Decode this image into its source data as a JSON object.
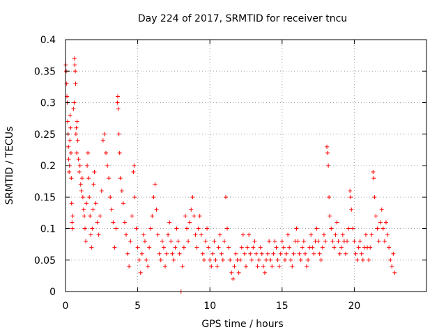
{
  "chart_data": {
    "type": "scatter",
    "title": "Day 224 of 2017, SRMTID for receiver tncu",
    "xlabel": "GPS time / hours",
    "ylabel": "SRMTID / TECUs",
    "xlim": [
      0,
      25
    ],
    "ylim": [
      0,
      0.4
    ],
    "grid": true,
    "marker": "+",
    "color": "#ff0000",
    "xticks": [
      0,
      5,
      10,
      15,
      20
    ],
    "xtick_labels": [
      "0",
      "5",
      "10",
      "15",
      "20"
    ],
    "yticks": [
      0,
      0.05,
      0.1,
      0.15,
      0.2,
      0.25,
      0.3,
      0.35,
      0.4
    ],
    "ytick_labels": [
      "0",
      "0.05",
      "0.1",
      "0.15",
      "0.2",
      "0.25",
      "0.3",
      "0.35",
      "0.4"
    ],
    "series": [
      {
        "name": "SRMTID",
        "points": [
          [
            0.02,
            0.36
          ],
          [
            0.05,
            0.35
          ],
          [
            0.08,
            0.33
          ],
          [
            0.1,
            0.31
          ],
          [
            0.12,
            0.3
          ],
          [
            0.15,
            0.27
          ],
          [
            0.18,
            0.25
          ],
          [
            0.2,
            0.23
          ],
          [
            0.22,
            0.21
          ],
          [
            0.25,
            0.19
          ],
          [
            0.28,
            0.2
          ],
          [
            0.3,
            0.24
          ],
          [
            0.32,
            0.28
          ],
          [
            0.35,
            0.26
          ],
          [
            0.38,
            0.22
          ],
          [
            0.4,
            0.18
          ],
          [
            0.42,
            0.14
          ],
          [
            0.45,
            0.11
          ],
          [
            0.48,
            0.1
          ],
          [
            0.5,
            0.12
          ],
          [
            0.55,
            0.29
          ],
          [
            0.6,
            0.3
          ],
          [
            0.62,
            0.37
          ],
          [
            0.65,
            0.36
          ],
          [
            0.68,
            0.35
          ],
          [
            0.7,
            0.33
          ],
          [
            0.72,
            0.25
          ],
          [
            0.75,
            0.26
          ],
          [
            0.78,
            0.22
          ],
          [
            0.8,
            0.27
          ],
          [
            0.85,
            0.24
          ],
          [
            0.9,
            0.21
          ],
          [
            0.95,
            0.19
          ],
          [
            1.0,
            0.2
          ],
          [
            1.05,
            0.17
          ],
          [
            1.1,
            0.16
          ],
          [
            1.15,
            0.18
          ],
          [
            1.2,
            0.15
          ],
          [
            1.25,
            0.13
          ],
          [
            1.3,
            0.12
          ],
          [
            1.35,
            0.1
          ],
          [
            1.4,
            0.08
          ],
          [
            1.45,
            0.14
          ],
          [
            1.5,
            0.2
          ],
          [
            1.55,
            0.22
          ],
          [
            1.6,
            0.18
          ],
          [
            1.65,
            0.15
          ],
          [
            1.7,
            0.12
          ],
          [
            1.75,
            0.09
          ],
          [
            1.8,
            0.07
          ],
          [
            1.85,
            0.1
          ],
          [
            1.9,
            0.13
          ],
          [
            1.95,
            0.17
          ],
          [
            2.0,
            0.19
          ],
          [
            2.1,
            0.14
          ],
          [
            2.2,
            0.11
          ],
          [
            2.3,
            0.09
          ],
          [
            2.4,
            0.12
          ],
          [
            2.5,
            0.16
          ],
          [
            2.6,
            0.24
          ],
          [
            2.7,
            0.25
          ],
          [
            2.8,
            0.22
          ],
          [
            2.9,
            0.2
          ],
          [
            3.0,
            0.18
          ],
          [
            3.1,
            0.15
          ],
          [
            3.2,
            0.13
          ],
          [
            3.3,
            0.11
          ],
          [
            3.4,
            0.07
          ],
          [
            3.5,
            0.1
          ],
          [
            3.6,
            0.3
          ],
          [
            3.62,
            0.31
          ],
          [
            3.65,
            0.29
          ],
          [
            3.7,
            0.25
          ],
          [
            3.75,
            0.22
          ],
          [
            3.8,
            0.18
          ],
          [
            3.9,
            0.16
          ],
          [
            4.0,
            0.14
          ],
          [
            4.1,
            0.11
          ],
          [
            4.2,
            0.09
          ],
          [
            4.3,
            0.06
          ],
          [
            4.4,
            0.04
          ],
          [
            4.5,
            0.08
          ],
          [
            4.6,
            0.12
          ],
          [
            4.7,
            0.19
          ],
          [
            4.75,
            0.2
          ],
          [
            4.8,
            0.15
          ],
          [
            4.9,
            0.1
          ],
          [
            5.0,
            0.07
          ],
          [
            5.1,
            0.05
          ],
          [
            5.2,
            0.03
          ],
          [
            5.3,
            0.06
          ],
          [
            5.4,
            0.09
          ],
          [
            5.5,
            0.08
          ],
          [
            5.6,
            0.05
          ],
          [
            5.7,
            0.04
          ],
          [
            5.8,
            0.07
          ],
          [
            5.9,
            0.1
          ],
          [
            6.0,
            0.12
          ],
          [
            6.1,
            0.15
          ],
          [
            6.2,
            0.17
          ],
          [
            6.3,
            0.13
          ],
          [
            6.4,
            0.09
          ],
          [
            6.5,
            0.06
          ],
          [
            6.6,
            0.05
          ],
          [
            6.7,
            0.08
          ],
          [
            6.8,
            0.07
          ],
          [
            6.9,
            0.04
          ],
          [
            7.0,
            0.06
          ],
          [
            7.1,
            0.09
          ],
          [
            7.2,
            0.11
          ],
          [
            7.3,
            0.08
          ],
          [
            7.4,
            0.06
          ],
          [
            7.5,
            0.05
          ],
          [
            7.6,
            0.07
          ],
          [
            7.7,
            0.1
          ],
          [
            7.8,
            0.08
          ],
          [
            7.9,
            0.06
          ],
          [
            8.0,
            0.0
          ],
          [
            8.1,
            0.04
          ],
          [
            8.2,
            0.07
          ],
          [
            8.3,
            0.12
          ],
          [
            8.4,
            0.1
          ],
          [
            8.5,
            0.08
          ],
          [
            8.6,
            0.11
          ],
          [
            8.7,
            0.13
          ],
          [
            8.8,
            0.15
          ],
          [
            8.9,
            0.12
          ],
          [
            9.0,
            0.09
          ],
          [
            9.1,
            0.07
          ],
          [
            9.2,
            0.1
          ],
          [
            9.3,
            0.12
          ],
          [
            9.4,
            0.09
          ],
          [
            9.5,
            0.06
          ],
          [
            9.6,
            0.05
          ],
          [
            9.7,
            0.08
          ],
          [
            9.8,
            0.1
          ],
          [
            9.9,
            0.07
          ],
          [
            10.0,
            0.05
          ],
          [
            10.1,
            0.04
          ],
          [
            10.2,
            0.06
          ],
          [
            10.3,
            0.08
          ],
          [
            10.4,
            0.05
          ],
          [
            10.5,
            0.04
          ],
          [
            10.6,
            0.07
          ],
          [
            10.7,
            0.09
          ],
          [
            10.8,
            0.06
          ],
          [
            10.9,
            0.05
          ],
          [
            11.0,
            0.08
          ],
          [
            11.1,
            0.15
          ],
          [
            11.2,
            0.1
          ],
          [
            11.3,
            0.07
          ],
          [
            11.4,
            0.05
          ],
          [
            11.5,
            0.03
          ],
          [
            11.6,
            0.02
          ],
          [
            11.7,
            0.04
          ],
          [
            11.8,
            0.06
          ],
          [
            11.9,
            0.05
          ],
          [
            12.0,
            0.03
          ],
          [
            12.1,
            0.05
          ],
          [
            12.2,
            0.07
          ],
          [
            12.3,
            0.09
          ],
          [
            12.4,
            0.06
          ],
          [
            12.5,
            0.04
          ],
          [
            12.6,
            0.07
          ],
          [
            12.7,
            0.09
          ],
          [
            12.8,
            0.06
          ],
          [
            12.9,
            0.05
          ],
          [
            13.0,
            0.07
          ],
          [
            13.1,
            0.08
          ],
          [
            13.2,
            0.06
          ],
          [
            13.3,
            0.04
          ],
          [
            13.4,
            0.05
          ],
          [
            13.5,
            0.07
          ],
          [
            13.6,
            0.06
          ],
          [
            13.7,
            0.04
          ],
          [
            13.8,
            0.03
          ],
          [
            13.9,
            0.05
          ],
          [
            14.0,
            0.06
          ],
          [
            14.1,
            0.08
          ],
          [
            14.2,
            0.05
          ],
          [
            14.3,
            0.04
          ],
          [
            14.4,
            0.06
          ],
          [
            14.5,
            0.08
          ],
          [
            14.6,
            0.07
          ],
          [
            14.7,
            0.05
          ],
          [
            14.8,
            0.04
          ],
          [
            14.9,
            0.06
          ],
          [
            15.0,
            0.08
          ],
          [
            15.1,
            0.07
          ],
          [
            15.2,
            0.05
          ],
          [
            15.3,
            0.06
          ],
          [
            15.4,
            0.09
          ],
          [
            15.5,
            0.07
          ],
          [
            15.6,
            0.05
          ],
          [
            15.7,
            0.04
          ],
          [
            15.8,
            0.06
          ],
          [
            15.9,
            0.08
          ],
          [
            16.0,
            0.1
          ],
          [
            16.1,
            0.08
          ],
          [
            16.2,
            0.06
          ],
          [
            16.3,
            0.05
          ],
          [
            16.4,
            0.07
          ],
          [
            16.5,
            0.08
          ],
          [
            16.6,
            0.06
          ],
          [
            16.7,
            0.04
          ],
          [
            16.8,
            0.05
          ],
          [
            16.9,
            0.07
          ],
          [
            17.0,
            0.09
          ],
          [
            17.1,
            0.07
          ],
          [
            17.2,
            0.06
          ],
          [
            17.3,
            0.08
          ],
          [
            17.4,
            0.1
          ],
          [
            17.5,
            0.08
          ],
          [
            17.6,
            0.06
          ],
          [
            17.7,
            0.05
          ],
          [
            17.8,
            0.07
          ],
          [
            17.9,
            0.09
          ],
          [
            18.0,
            0.08
          ],
          [
            18.1,
            0.23
          ],
          [
            18.15,
            0.22
          ],
          [
            18.2,
            0.2
          ],
          [
            18.25,
            0.15
          ],
          [
            18.3,
            0.12
          ],
          [
            18.4,
            0.1
          ],
          [
            18.5,
            0.08
          ],
          [
            18.6,
            0.07
          ],
          [
            18.7,
            0.09
          ],
          [
            18.8,
            0.11
          ],
          [
            18.9,
            0.08
          ],
          [
            19.0,
            0.06
          ],
          [
            19.1,
            0.07
          ],
          [
            19.2,
            0.09
          ],
          [
            19.3,
            0.08
          ],
          [
            19.4,
            0.06
          ],
          [
            19.5,
            0.08
          ],
          [
            19.6,
            0.1
          ],
          [
            19.7,
            0.16
          ],
          [
            19.75,
            0.15
          ],
          [
            19.8,
            0.13
          ],
          [
            19.9,
            0.1
          ],
          [
            20.0,
            0.08
          ],
          [
            20.1,
            0.06
          ],
          [
            20.2,
            0.05
          ],
          [
            20.3,
            0.07
          ],
          [
            20.4,
            0.08
          ],
          [
            20.5,
            0.06
          ],
          [
            20.6,
            0.05
          ],
          [
            20.7,
            0.07
          ],
          [
            20.8,
            0.09
          ],
          [
            20.9,
            0.07
          ],
          [
            21.0,
            0.05
          ],
          [
            21.1,
            0.07
          ],
          [
            21.2,
            0.09
          ],
          [
            21.3,
            0.19
          ],
          [
            21.35,
            0.18
          ],
          [
            21.4,
            0.15
          ],
          [
            21.5,
            0.12
          ],
          [
            21.6,
            0.1
          ],
          [
            21.7,
            0.08
          ],
          [
            21.8,
            0.11
          ],
          [
            21.9,
            0.13
          ],
          [
            22.0,
            0.1
          ],
          [
            22.1,
            0.08
          ],
          [
            22.2,
            0.11
          ],
          [
            22.3,
            0.09
          ],
          [
            22.4,
            0.07
          ],
          [
            22.5,
            0.05
          ],
          [
            22.6,
            0.04
          ],
          [
            22.7,
            0.06
          ],
          [
            22.8,
            0.03
          ]
        ]
      }
    ]
  }
}
